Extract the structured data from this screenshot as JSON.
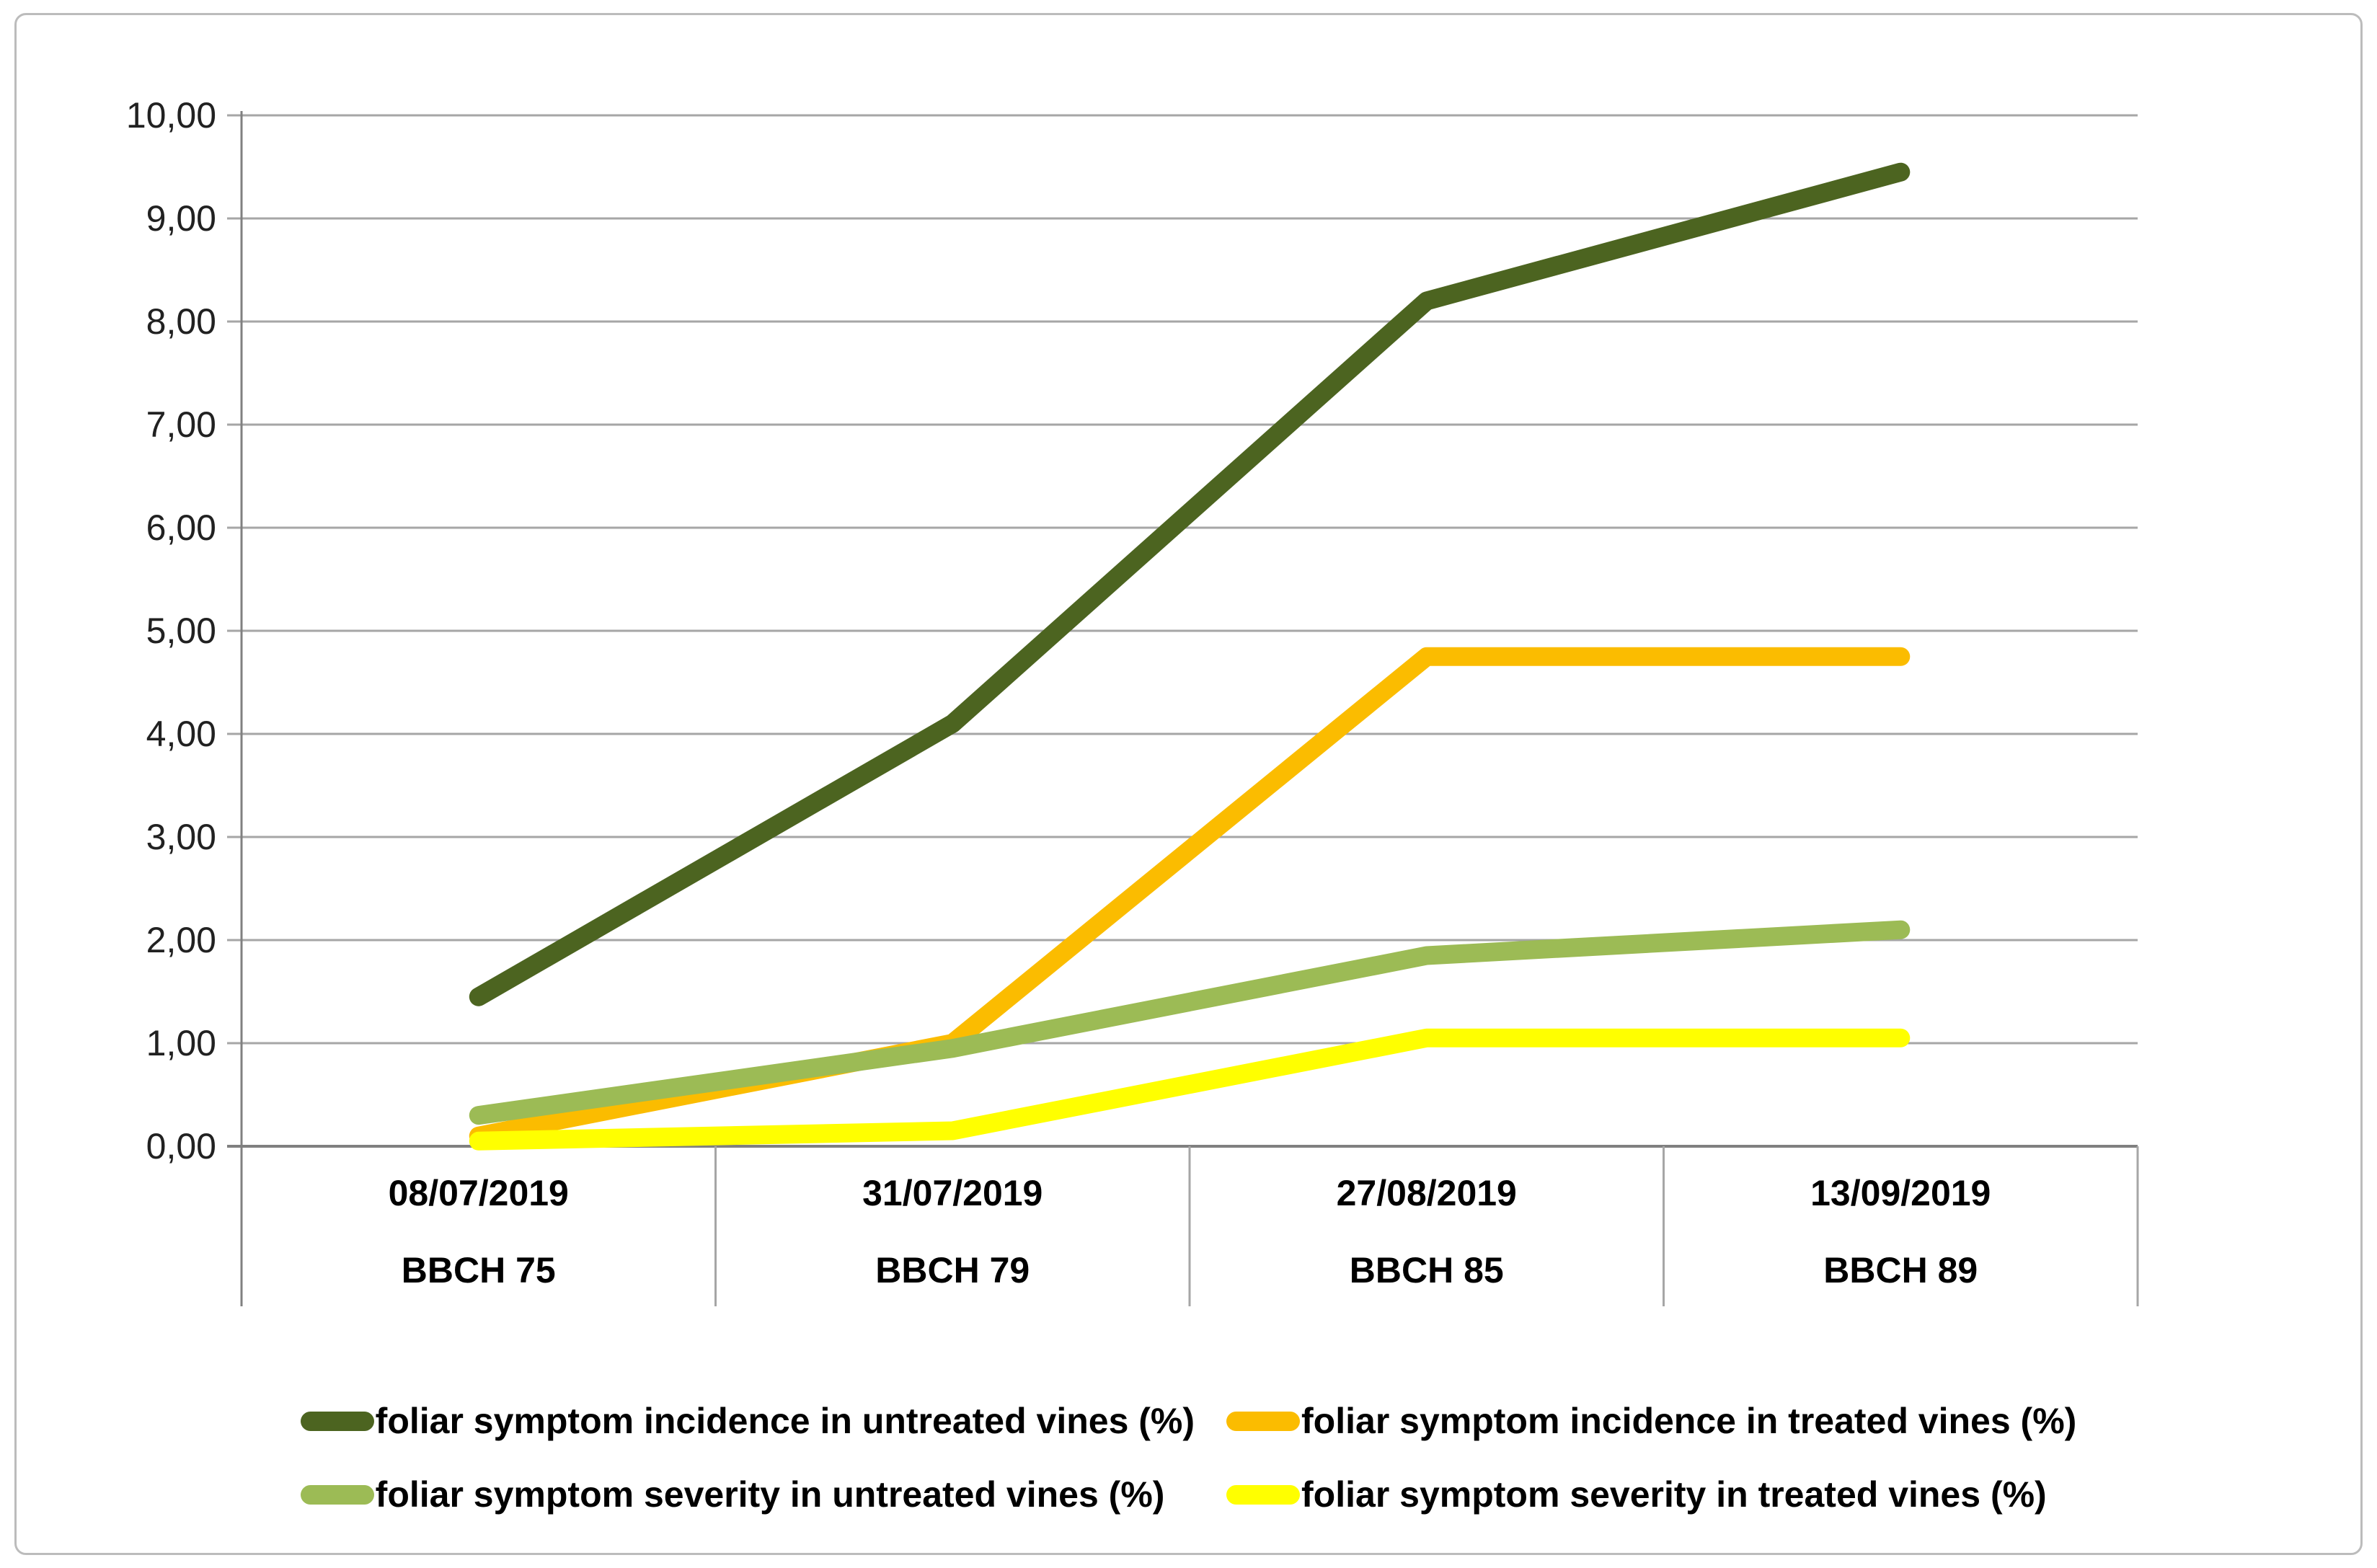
{
  "chart_data": {
    "type": "line",
    "title": "",
    "xlabel": "",
    "ylabel": "",
    "ylim": [
      0,
      10
    ],
    "y_tick_step": 1,
    "y_ticks": [
      "0,00",
      "1,00",
      "2,00",
      "3,00",
      "4,00",
      "5,00",
      "6,00",
      "7,00",
      "8,00",
      "9,00",
      "10,00"
    ],
    "grid": true,
    "legend_position": "bottom",
    "categories": [
      {
        "date": "08/07/2019",
        "bbch": "BBCH 75"
      },
      {
        "date": "31/07/2019",
        "bbch": "BBCH 79"
      },
      {
        "date": "27/08/2019",
        "bbch": "BBCH 85"
      },
      {
        "date": "13/09/2019",
        "bbch": "BBCH 89"
      }
    ],
    "series": [
      {
        "name": "foliar symptom incidence in untreated vines (%)",
        "color": "#4c6420",
        "values": [
          1.45,
          4.1,
          8.2,
          9.45
        ]
      },
      {
        "name": "foliar symptom incidence in treated vines (%)",
        "color": "#fbbc00",
        "values": [
          0.1,
          1.0,
          4.75,
          4.75
        ]
      },
      {
        "name": "foliar symptom severity in untreated vines (%)",
        "color": "#9cbb55",
        "values": [
          0.3,
          0.95,
          1.85,
          2.1
        ]
      },
      {
        "name": "foliar symptom severity in treated vines (%)",
        "color": "#ffff00",
        "values": [
          0.05,
          0.15,
          1.05,
          1.05
        ]
      }
    ],
    "legend_order": [
      0,
      1,
      2,
      3
    ],
    "colors": {
      "gridline": "#a6a6a6",
      "axis_line": "#808080",
      "figure_border": "#bcbcbc",
      "tick_text": "#212121",
      "category_text": "#000000"
    }
  }
}
